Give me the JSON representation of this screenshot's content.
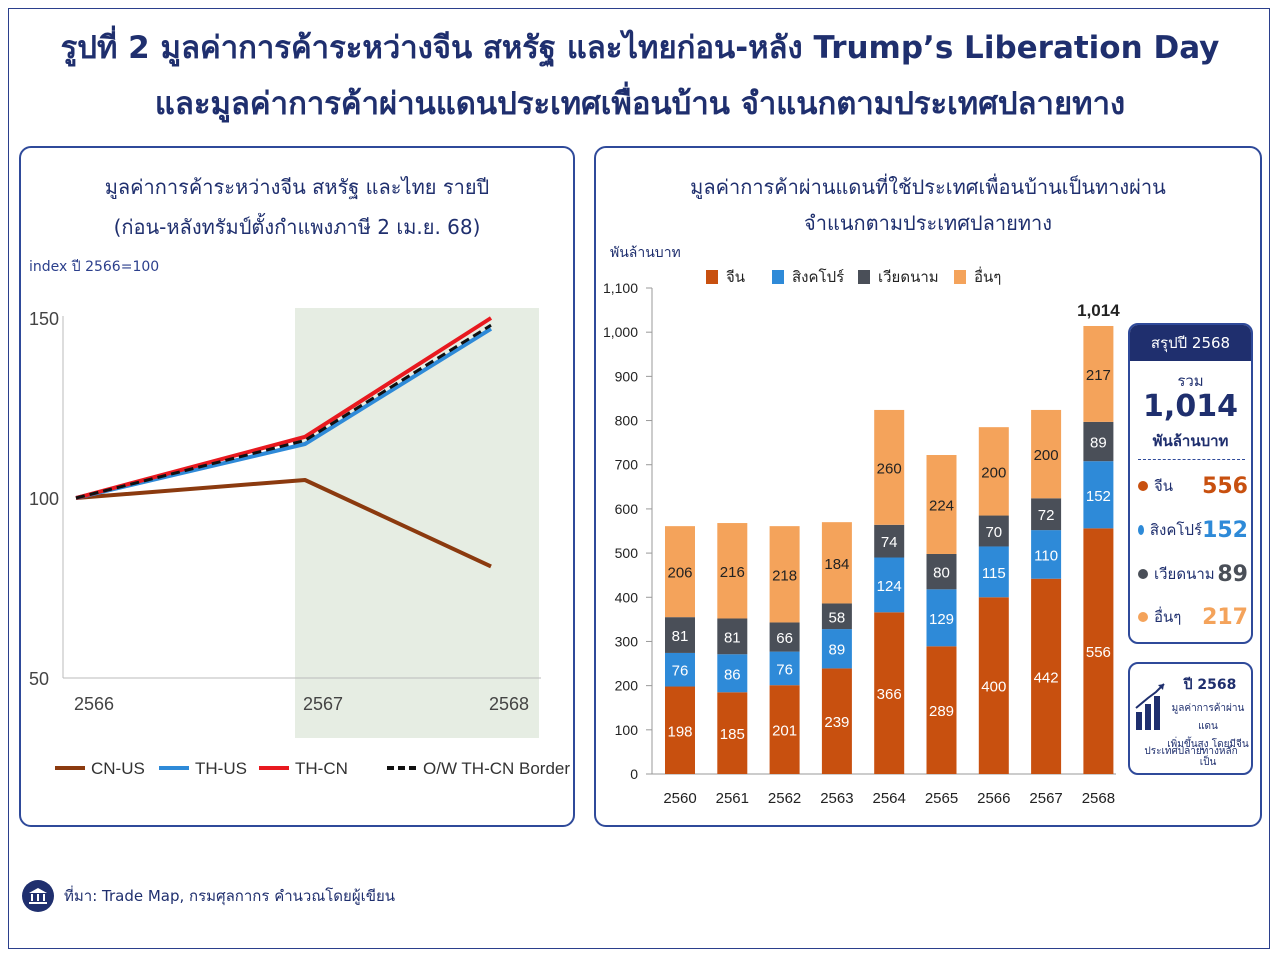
{
  "title": {
    "line1": "รูปที่ 2 มูลค่าการค้าระหว่างจีน สหรัฐ และไทยก่อน-หลัง Trump’s Liberation Day",
    "line2": "และมูลค่าการค้าผ่านแดนประเทศเพื่อนบ้าน จำแนกตามประเทศปลายทาง"
  },
  "left_panel": {
    "title_line1": "มูลค่าการค้าระหว่างจีน สหรัฐ และไทย รายปี",
    "title_line2": "(ก่อน-หลังทรัมป์ตั้งกำแพงภาษี 2 เม.ย. 68)",
    "unit": "index ปี 2566=100"
  },
  "right_panel": {
    "title_line1": "มูลค่าการค้าผ่านแดนที่ใช้ประเทศเพื่อนบ้านเป็นทางผ่าน",
    "title_line2": "จำแนกตามประเทศปลายทาง",
    "unit": "พันล้านบาท",
    "total_label": "1,014"
  },
  "summary": {
    "header": "สรุปปี 2568",
    "total_label": "รวม",
    "total_value": "1,014",
    "unit": "พันล้านบาท",
    "rows": [
      {
        "label": "จีน",
        "value": "556",
        "color": "#c8500f"
      },
      {
        "label": "สิงคโปร์",
        "value": "152",
        "color": "#2e8ad8"
      },
      {
        "label": "เวียดนาม",
        "value": "89",
        "color": "#4a4f58"
      },
      {
        "label": "อื่นๆ",
        "value": "217",
        "color": "#f4a35b"
      }
    ]
  },
  "note": {
    "year": "ปี 2568",
    "line1": "มูลค่าการค้าผ่านแดน",
    "line2": "เพิ่มขึ้นสูง โดยมีจีนเป็น",
    "line3": "ประเทศปลายทางหลัก"
  },
  "footer": {
    "source": "ที่มา: Trade Map, กรมศุลกากร  คำนวณโดยผู้เขียน"
  },
  "chart_data": [
    {
      "type": "line",
      "x": [
        "2566",
        "2567",
        "2568"
      ],
      "ylim": [
        50,
        150
      ],
      "yticks": [
        50,
        100,
        150
      ],
      "highlight_range": [
        "2567",
        "2568"
      ],
      "grid": false,
      "legend_position": "bottom",
      "series": [
        {
          "name": "CN-US",
          "values": [
            100,
            105,
            81
          ],
          "color": "#8b3a0f",
          "dash": false
        },
        {
          "name": "TH-US",
          "values": [
            100,
            115,
            147
          ],
          "color": "#2e8ad8",
          "dash": false
        },
        {
          "name": "TH-CN",
          "values": [
            100,
            117,
            150
          ],
          "color": "#e8191f",
          "dash": false
        },
        {
          "name": "O/W TH-CN Border",
          "values": [
            100,
            116,
            148
          ],
          "color": "#111111",
          "dash": true
        }
      ]
    },
    {
      "type": "bar",
      "stacked": true,
      "categories": [
        "2560",
        "2561",
        "2562",
        "2563",
        "2564",
        "2565",
        "2566",
        "2567",
        "2568"
      ],
      "ylim": [
        0,
        1100
      ],
      "yticks": [
        0,
        100,
        200,
        300,
        400,
        500,
        600,
        700,
        800,
        900,
        1000,
        1100
      ],
      "ytick_labels": [
        "0",
        "100",
        "200",
        "300",
        "400",
        "500",
        "600",
        "700",
        "800",
        "900",
        "1,000",
        "1,100"
      ],
      "grid": false,
      "legend_position": "top",
      "series": [
        {
          "name": "จีน",
          "color": "#c8500f",
          "values": [
            198,
            185,
            201,
            239,
            366,
            289,
            400,
            442,
            556
          ]
        },
        {
          "name": "สิงคโปร์",
          "color": "#2e8ad8",
          "values": [
            76,
            86,
            76,
            89,
            124,
            129,
            115,
            110,
            152
          ]
        },
        {
          "name": "เวียดนาม",
          "color": "#4a4f58",
          "values": [
            81,
            81,
            66,
            58,
            74,
            80,
            70,
            72,
            89
          ]
        },
        {
          "name": "อื่นๆ",
          "color": "#f4a35b",
          "values": [
            206,
            216,
            218,
            184,
            260,
            224,
            200,
            200,
            217
          ]
        }
      ]
    }
  ]
}
